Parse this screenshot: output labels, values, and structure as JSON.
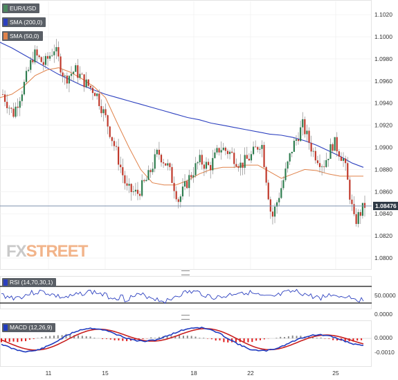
{
  "legend": {
    "symbol": "EUR/USD",
    "sma200": "SMA (200,0)",
    "sma50": "SMA (50,0)"
  },
  "price_tag": "1.08476",
  "logo": {
    "part1": "FX",
    "part2": "STREET"
  },
  "rsi_label": "RSI (14,70,30,1)",
  "macd_label": "MACD (12,26,9)",
  "colors": {
    "up": "#2e7d4f",
    "down": "#c0392b",
    "sma200": "#2b3fbf",
    "sma50": "#e0824a",
    "rsi": "#2b3fbf",
    "macd_line": "#1f3bbf",
    "signal_line": "#c81e1e",
    "hist_pos": "#8c8c8c",
    "hist_neg": "#e01a1a"
  },
  "chart_data": [
    {
      "type": "candlestick",
      "title": "EUR/USD",
      "y_ticks": [
        "1.1020",
        "1.1000",
        "1.0980",
        "1.0960",
        "1.0940",
        "1.0920",
        "1.0900",
        "1.0880",
        "1.0860",
        "1.0840",
        "1.0820",
        "1.0800"
      ],
      "x_ticks": [
        "11",
        "15",
        "18",
        "22",
        "25"
      ],
      "ylim": [
        1.079,
        1.1032
      ],
      "last_price": 1.08476,
      "series": [
        {
          "name": "SMA (200,0)",
          "values": [
            1.0995,
            1.099,
            1.0984,
            1.0978,
            1.0972,
            1.0966,
            1.0961,
            1.0956,
            1.0952,
            1.0948,
            1.0945,
            1.0942,
            1.0939,
            1.0936,
            1.0933,
            1.093,
            1.0927,
            1.0925,
            1.0922,
            1.092,
            1.0918,
            1.0916,
            1.0914,
            1.0912,
            1.0911,
            1.0909,
            1.0906,
            1.0902,
            1.0897,
            1.0892,
            1.0886,
            1.0882
          ]
        },
        {
          "name": "SMA (50,0)",
          "values": [
            1.0945,
            1.0948,
            1.0955,
            1.0965,
            1.097,
            1.0972,
            1.0968,
            1.0962,
            1.0955,
            1.0945,
            1.0922,
            1.09,
            1.088,
            1.0868,
            1.0866,
            1.0866,
            1.087,
            1.0876,
            1.088,
            1.0882,
            1.0882,
            1.0884,
            1.0884,
            1.0878,
            1.0872,
            1.0876,
            1.088,
            1.0879,
            1.0876,
            1.0874,
            1.0874,
            1.0874
          ]
        }
      ],
      "closes": [
        1.0948,
        1.093,
        1.0955,
        1.0985,
        1.0975,
        1.099,
        1.0962,
        1.097,
        1.0958,
        1.095,
        1.0925,
        1.0895,
        1.0862,
        1.0858,
        1.0872,
        1.0896,
        1.0882,
        1.0852,
        1.0872,
        1.0888,
        1.0882,
        1.09,
        1.0895,
        1.0884,
        1.0892,
        1.0906,
        1.0835,
        1.0866,
        1.09,
        1.092,
        1.0896,
        1.0884,
        1.0905,
        1.0888,
        1.0832,
        1.08476
      ]
    },
    {
      "type": "line",
      "title": "RSI (14,70,30,1)",
      "y_ticks": [
        "50.0000",
        "0.0000"
      ],
      "levels": [
        70,
        30
      ],
      "ylim": [
        0,
        100
      ]
    },
    {
      "type": "line",
      "title": "MACD (12,26,9)",
      "y_ticks": [
        "0.0000",
        "-0.0010"
      ],
      "ylim": [
        -0.0015,
        0.0009
      ]
    }
  ]
}
